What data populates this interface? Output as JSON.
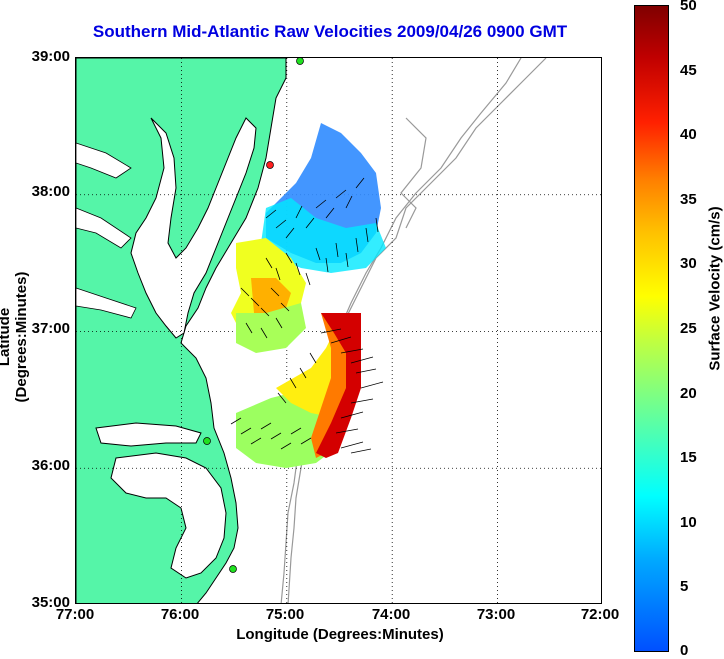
{
  "title": "Southern Mid-Atlantic Raw Velocities 2009/04/26 0900 GMT",
  "ylabel": "Latitude (Degrees:Minutes)",
  "xlabel": "Longitude (Degrees:Minutes)",
  "yticks": [
    "39:00",
    "38:00",
    "37:00",
    "36:00",
    "35:00"
  ],
  "xticks": [
    "77:00",
    "76:00",
    "75:00",
    "74:00",
    "73:00",
    "72:00"
  ],
  "colorbar": {
    "label": "Surface Velocity (cm/s)",
    "ticks": [
      "50",
      "45",
      "40",
      "35",
      "30",
      "25",
      "20",
      "15",
      "10",
      "5",
      "0"
    ]
  },
  "colors": {
    "land": "#55f5a8",
    "title": "#0000e0",
    "coast": "#000000",
    "bathymetry": "#999999"
  }
}
